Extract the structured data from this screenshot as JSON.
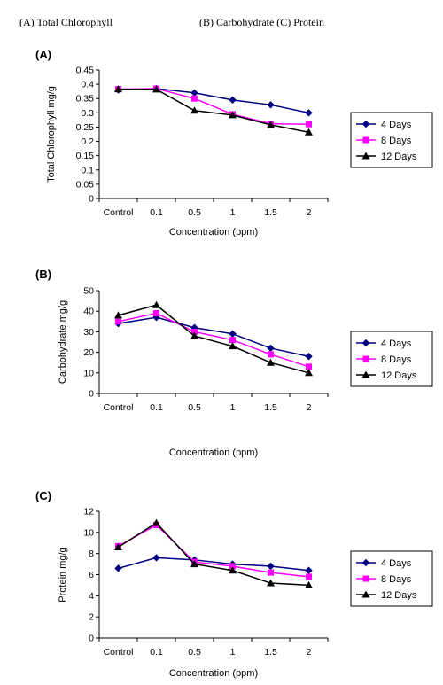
{
  "header": {
    "left_caption": "(A) Total Chlorophyll",
    "right_caption": "(B) Carbohydrate (C) Protein"
  },
  "chart_data": [
    {
      "type": "line",
      "panel_label": "(A)",
      "categories": [
        "Control",
        "0.1",
        "0.5",
        "1",
        "1.5",
        "2"
      ],
      "xlabel": "Concentration (ppm)",
      "ylabel": "Total Chlorophyll mg/g",
      "ylim": [
        0,
        0.45
      ],
      "yticks": [
        0,
        0.05,
        0.1,
        0.15,
        0.2,
        0.25,
        0.3,
        0.35,
        0.4,
        0.45
      ],
      "ytick_labels": [
        "0",
        "0.05",
        "0.1",
        "0.15",
        "0.2",
        "0.25",
        "0.3",
        "0.35",
        "0.4",
        "0.45"
      ],
      "legend_position": "right",
      "series": [
        {
          "name": "4 Days",
          "color": "#000080",
          "marker": "diamond",
          "values": [
            0.38,
            0.385,
            0.37,
            0.345,
            0.328,
            0.3
          ]
        },
        {
          "name": "8 Days",
          "color": "#ff00ff",
          "marker": "square",
          "values": [
            0.383,
            0.385,
            0.35,
            0.295,
            0.262,
            0.26
          ]
        },
        {
          "name": "12 Days",
          "color": "#000000",
          "marker": "triangle",
          "values": [
            0.383,
            0.382,
            0.308,
            0.292,
            0.258,
            0.232
          ]
        }
      ]
    },
    {
      "type": "line",
      "panel_label": "(B)",
      "categories": [
        "Control",
        "0.1",
        "0.5",
        "1",
        "1.5",
        "2"
      ],
      "xlabel": "Concentration (ppm)",
      "ylabel": "Carbohydrate  mg/g",
      "ylim": [
        0,
        50
      ],
      "yticks": [
        0,
        10,
        20,
        30,
        40,
        50
      ],
      "ytick_labels": [
        "0",
        "10",
        "20",
        "30",
        "40",
        "50"
      ],
      "legend_position": "right",
      "series": [
        {
          "name": "4 Days",
          "color": "#000080",
          "marker": "diamond",
          "values": [
            34,
            37,
            32,
            29,
            22,
            18
          ]
        },
        {
          "name": "8 Days",
          "color": "#ff00ff",
          "marker": "square",
          "values": [
            35,
            39,
            30,
            26,
            19,
            13
          ]
        },
        {
          "name": "12 Days",
          "color": "#000000",
          "marker": "triangle",
          "values": [
            38,
            43,
            28,
            23,
            15,
            10
          ]
        }
      ]
    },
    {
      "type": "line",
      "panel_label": "(C)",
      "categories": [
        "Control",
        "0.1",
        "0.5",
        "1",
        "1.5",
        "2"
      ],
      "xlabel": "Concentration (ppm)",
      "ylabel": "Protein  mg/g",
      "ylim": [
        0,
        12
      ],
      "yticks": [
        0,
        2,
        4,
        6,
        8,
        10,
        12
      ],
      "ytick_labels": [
        "0",
        "2",
        "4",
        "6",
        "8",
        "10",
        "12"
      ],
      "legend_position": "right",
      "series": [
        {
          "name": "4 Days",
          "color": "#000080",
          "marker": "diamond",
          "values": [
            6.6,
            7.6,
            7.4,
            7.0,
            6.8,
            6.4
          ]
        },
        {
          "name": "8 Days",
          "color": "#ff00ff",
          "marker": "square",
          "values": [
            8.7,
            10.7,
            7.2,
            6.8,
            6.2,
            5.8
          ]
        },
        {
          "name": "12 Days",
          "color": "#000000",
          "marker": "triangle",
          "values": [
            8.6,
            10.9,
            7.0,
            6.4,
            5.2,
            5.0
          ]
        }
      ]
    }
  ]
}
